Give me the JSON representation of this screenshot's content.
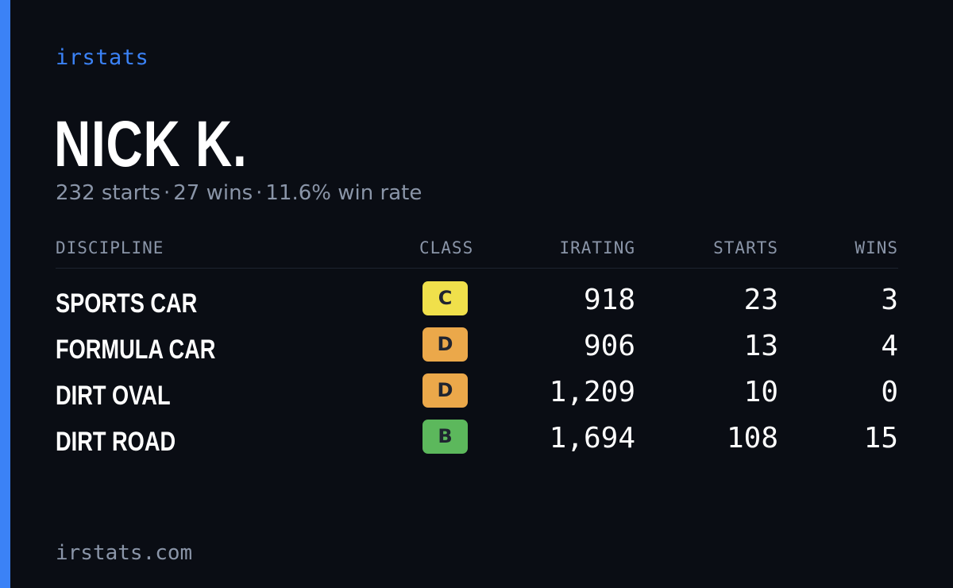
{
  "brand": "irstats",
  "player": {
    "name": "NICK K.",
    "starts": "232 starts",
    "wins": "27 wins",
    "win_rate": "11.6% win rate",
    "separator": "·"
  },
  "colors": {
    "accent": "#3b82f6",
    "background": "#0a0d14",
    "muted": "#8a95a8"
  },
  "table": {
    "headers": {
      "discipline": "DISCIPLINE",
      "class": "CLASS",
      "irating": "IRATING",
      "starts": "STARTS",
      "wins": "WINS"
    },
    "rows": [
      {
        "discipline": "SPORTS CAR",
        "class": "C",
        "class_color": "#f0e04b",
        "irating": "918",
        "starts": "23",
        "wins": "3"
      },
      {
        "discipline": "FORMULA CAR",
        "class": "D",
        "class_color": "#eba84a",
        "irating": "906",
        "starts": "13",
        "wins": "4"
      },
      {
        "discipline": "DIRT OVAL",
        "class": "D",
        "class_color": "#eba84a",
        "irating": "1,209",
        "starts": "10",
        "wins": "0"
      },
      {
        "discipline": "DIRT ROAD",
        "class": "B",
        "class_color": "#5cb85c",
        "irating": "1,694",
        "starts": "108",
        "wins": "15"
      }
    ]
  },
  "footer": "irstats.com"
}
